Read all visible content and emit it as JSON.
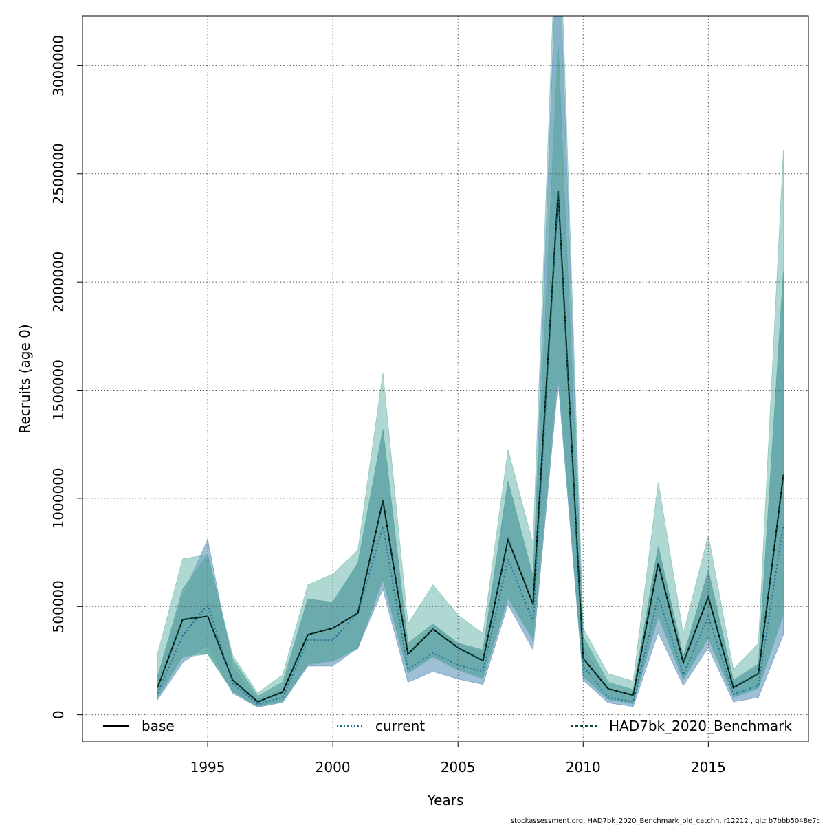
{
  "chart_data": {
    "type": "line",
    "xlabel": "Years",
    "ylabel": "Recruits (age 0)",
    "xlim": [
      1990.0,
      2019.0
    ],
    "ylim": [
      -125000,
      3230000
    ],
    "x_ticks": [
      1995,
      2000,
      2005,
      2010,
      2015
    ],
    "y_ticks": [
      0,
      500000,
      1000000,
      1500000,
      2000000,
      2500000,
      3000000
    ],
    "grid": true,
    "legend_position": "bottom",
    "footer": "stockassessment.org, HAD7bk_2020_Benchmark_old_catchn, r12212 , git: b7bbb5048e7c",
    "years": [
      1993,
      1994,
      1995,
      1996,
      1997,
      1998,
      1999,
      2000,
      2001,
      2002,
      2003,
      2004,
      2005,
      2006,
      2007,
      2008,
      2009,
      2010,
      2011,
      2012,
      2013,
      2014,
      2015,
      2016,
      2017,
      2018
    ],
    "series": [
      {
        "name": "base",
        "line_style": "solid",
        "line_color": "#000000",
        "band_color": "#8fc9bf",
        "values": [
          125000,
          440000,
          455000,
          160000,
          60000,
          105000,
          370000,
          400000,
          470000,
          990000,
          280000,
          395000,
          310000,
          250000,
          810000,
          510000,
          2420000,
          260000,
          120000,
          90000,
          700000,
          240000,
          545000,
          125000,
          190000,
          1110000
        ],
        "lower": [
          75000,
          265000,
          280000,
          105000,
          37000,
          60000,
          230000,
          245000,
          305000,
          620000,
          190000,
          265000,
          205000,
          165000,
          535000,
          340000,
          1560000,
          175000,
          70000,
          50000,
          450000,
          160000,
          350000,
          80000,
          120000,
          460000
        ],
        "upper": [
          280000,
          720000,
          740000,
          275000,
          100000,
          185000,
          600000,
          650000,
          760000,
          1580000,
          420000,
          600000,
          460000,
          375000,
          1225000,
          790000,
          3900000,
          400000,
          190000,
          155000,
          1075000,
          375000,
          830000,
          210000,
          330000,
          2610000
        ]
      },
      {
        "name": "current",
        "line_style": "dotted",
        "line_color": "#1f6f9e",
        "band_color": "#7aa6c8",
        "values": [
          100000,
          365000,
          510000,
          145000,
          48000,
          80000,
          345000,
          345000,
          470000,
          870000,
          210000,
          285000,
          230000,
          200000,
          720000,
          430000,
          2400000,
          225000,
          80000,
          60000,
          545000,
          185000,
          455000,
          95000,
          135000,
          880000
        ],
        "lower": [
          70000,
          240000,
          325000,
          100000,
          35000,
          57000,
          225000,
          225000,
          310000,
          580000,
          150000,
          200000,
          165000,
          140000,
          510000,
          300000,
          1540000,
          160000,
          55000,
          38000,
          380000,
          135000,
          310000,
          60000,
          80000,
          370000
        ],
        "upper": [
          165000,
          550000,
          810000,
          220000,
          70000,
          120000,
          530000,
          520000,
          700000,
          1310000,
          290000,
          410000,
          330000,
          290000,
          1065000,
          620000,
          3720000,
          315000,
          120000,
          95000,
          775000,
          255000,
          670000,
          150000,
          225000,
          2050000
        ]
      },
      {
        "name": "HAD7bk_2020_Benchmark",
        "line_style": "dashed",
        "line_color": "#0b4d3c",
        "band_color": "#5fa8a2",
        "values": [
          125000,
          440000,
          455000,
          160000,
          60000,
          105000,
          370000,
          400000,
          470000,
          990000,
          280000,
          395000,
          310000,
          250000,
          810000,
          510000,
          2420000,
          260000,
          120000,
          90000,
          700000,
          240000,
          545000,
          125000,
          190000,
          1110000
        ],
        "lower": [
          85000,
          270000,
          285000,
          110000,
          40000,
          65000,
          235000,
          250000,
          310000,
          630000,
          195000,
          270000,
          210000,
          170000,
          545000,
          350000,
          1600000,
          180000,
          72000,
          52000,
          460000,
          165000,
          360000,
          82000,
          125000,
          470000
        ],
        "upper": [
          175000,
          580000,
          740000,
          255000,
          85000,
          150000,
          535000,
          520000,
          700000,
          1320000,
          330000,
          420000,
          330000,
          300000,
          1080000,
          640000,
          3100000,
          360000,
          150000,
          115000,
          780000,
          270000,
          660000,
          160000,
          235000,
          2050000
        ]
      }
    ]
  }
}
